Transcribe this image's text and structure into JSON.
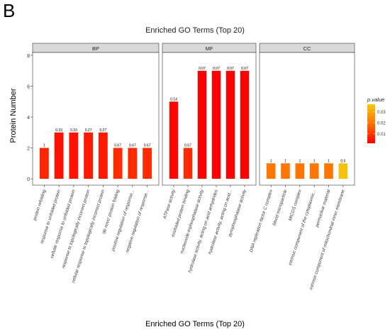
{
  "panel_letter": "B",
  "chart_data": {
    "type": "bar",
    "title": "Enriched GO Terms (Top 20)",
    "xlabel": "Enriched GO Terms (Top 20)",
    "ylabel": "Protein Number",
    "ylim": [
      0,
      8
    ],
    "yticks": [
      0,
      2,
      4,
      6,
      8
    ],
    "grid": false,
    "legend": {
      "title": "p.value",
      "placement": "right",
      "ticks": [
        0.01,
        0.02,
        0.03
      ],
      "range": [
        0.001,
        0.037
      ],
      "low_color": "#ff0000",
      "mid_color": "#ff7a00",
      "high_color": "#f2c80f"
    },
    "facets": [
      {
        "name": "BP",
        "bars": [
          {
            "term": "protein refolding",
            "value": 2,
            "label": "1",
            "p": 0.007
          },
          {
            "term": "response to unfolded protein",
            "value": 3,
            "label": "0.33",
            "p": 0.004
          },
          {
            "term": "cellular response to unfolded protein",
            "value": 3,
            "label": "0.33",
            "p": 0.004
          },
          {
            "term": "response to topologically incorrect protein",
            "value": 3,
            "label": "0.27",
            "p": 0.005
          },
          {
            "term": "cellular response to topologically incorrect protein",
            "value": 3,
            "label": "0.27",
            "p": 0.005
          },
          {
            "term": "'de novo' protein folding",
            "value": 2,
            "label": "0.67",
            "p": 0.008
          },
          {
            "term": "positive regulation of response...",
            "value": 2,
            "label": "0.67",
            "p": 0.008
          },
          {
            "term": "negative regulation of response...",
            "value": 2,
            "label": "0.67",
            "p": 0.008
          }
        ]
      },
      {
        "name": "MF",
        "bars": [
          {
            "term": "ATPase activity",
            "value": 5,
            "label": "0.14",
            "p": 0.002
          },
          {
            "term": "misfolded protein binding",
            "value": 2,
            "label": "0.67",
            "p": 0.008
          },
          {
            "term": "nucleoside-triphosphatase activity",
            "value": 7,
            "label": "0.07",
            "p": 0.001
          },
          {
            "term": "hydrolase activity, acting on acid anhydrides",
            "value": 7,
            "label": "0.07",
            "p": 0.001
          },
          {
            "term": "hydrolase activity, acting on acid...",
            "value": 7,
            "label": "0.07",
            "p": 0.001
          },
          {
            "term": "pyrophosphatase activity",
            "value": 7,
            "label": "0.07",
            "p": 0.001
          }
        ]
      },
      {
        "name": "CC",
        "bars": [
          {
            "term": "DNA replication factor C complex",
            "value": 1,
            "label": "1",
            "p": 0.02
          },
          {
            "term": "blood microparticle",
            "value": 1,
            "label": "1",
            "p": 0.02
          },
          {
            "term": "MICOS complex",
            "value": 1,
            "label": "1",
            "p": 0.02
          },
          {
            "term": "intrinsic component of the cytoplasmic...",
            "value": 1,
            "label": "1",
            "p": 0.02
          },
          {
            "term": "perinuclear material",
            "value": 1,
            "label": "1",
            "p": 0.02
          },
          {
            "term": "intrinsic component of mitochondrial inner membrane",
            "value": 1,
            "label": "0.5",
            "p": 0.036
          }
        ]
      }
    ]
  }
}
